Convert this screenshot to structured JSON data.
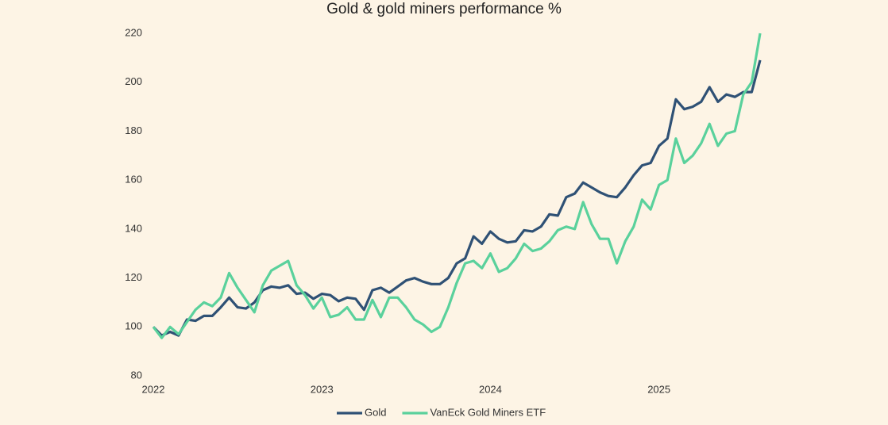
{
  "chart_data": {
    "type": "line",
    "title": "Gold & gold miners performance %",
    "x": [
      2022,
      2022.05,
      2022.1,
      2022.15,
      2022.2,
      2022.25,
      2022.3,
      2022.35,
      2022.4,
      2022.45,
      2022.5,
      2022.55,
      2022.6,
      2022.65,
      2022.7,
      2022.75,
      2022.8,
      2022.85,
      2022.9,
      2022.95,
      2023,
      2023.05,
      2023.1,
      2023.15,
      2023.2,
      2023.25,
      2023.3,
      2023.35,
      2023.4,
      2023.45,
      2023.5,
      2023.55,
      2023.6,
      2023.65,
      2023.7,
      2023.75,
      2023.8,
      2023.85,
      2023.9,
      2023.95,
      2024,
      2024.05,
      2024.1,
      2024.15,
      2024.2,
      2024.25,
      2024.3,
      2024.35,
      2024.4,
      2024.45,
      2024.5,
      2024.55,
      2024.6,
      2024.65,
      2024.7,
      2024.75,
      2024.8,
      2024.85,
      2024.9,
      2024.95,
      2025,
      2025.05,
      2025.1,
      2025.15,
      2025.2,
      2025.25,
      2025.3,
      2025.35,
      2025.4,
      2025.45,
      2025.5,
      2025.55,
      2025.6
    ],
    "series": [
      {
        "name": "Gold",
        "color": "#2f5175",
        "values": [
          100,
          96.5,
          98,
          96.5,
          103,
          102.5,
          104.5,
          104.5,
          108,
          112,
          108,
          107.5,
          110,
          115,
          116.5,
          116,
          117,
          113.5,
          114,
          111.5,
          113.5,
          113,
          110.5,
          112,
          111.5,
          107,
          115,
          116,
          114,
          116.5,
          119,
          120,
          118.5,
          117.5,
          117.5,
          120,
          126,
          128,
          137,
          134,
          139,
          136,
          134.5,
          135,
          139.5,
          139,
          141,
          146,
          145.5,
          153,
          154.5,
          159,
          157,
          155,
          153.5,
          153,
          157,
          162,
          166,
          167,
          174,
          177,
          193,
          189,
          190,
          192,
          198,
          192,
          195,
          194,
          196,
          196,
          209
        ]
      },
      {
        "name": "VanEck Gold Miners ETF",
        "color": "#5ad19c",
        "values": [
          100,
          95.5,
          100,
          97,
          102,
          107,
          110,
          108.5,
          112,
          122,
          116,
          111,
          106,
          117,
          123,
          125,
          127,
          117,
          113,
          107.5,
          112,
          104,
          105,
          108,
          103,
          103,
          111,
          104,
          112,
          112,
          108,
          103,
          101,
          98,
          100,
          108,
          118,
          126,
          127,
          124,
          130,
          122.5,
          124,
          128,
          134,
          131,
          132,
          135,
          139.5,
          141,
          140,
          151,
          142,
          136,
          136,
          126,
          135,
          141,
          152,
          148,
          158,
          160,
          177,
          167,
          170,
          175,
          183,
          174,
          179,
          180,
          195,
          200,
          220
        ]
      }
    ],
    "xlim": [
      2022,
      2025.6
    ],
    "xticks": [
      2022,
      2023,
      2024,
      2025
    ],
    "ylim": [
      80,
      220
    ],
    "yticks": [
      80,
      100,
      120,
      140,
      160,
      180,
      200,
      220
    ],
    "grid": false,
    "legend": "bottom"
  }
}
